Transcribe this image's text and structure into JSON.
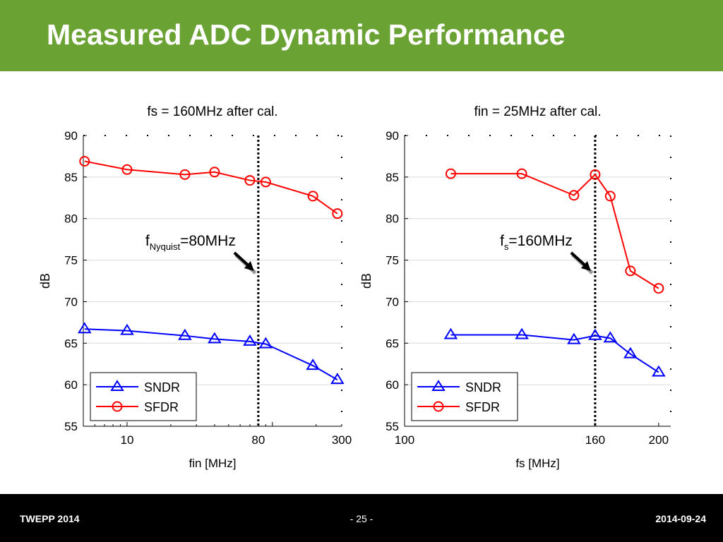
{
  "slide": {
    "title": "Measured ADC Dynamic Performance",
    "footer_left": "TWEPP 2014",
    "footer_center": "- 25 -",
    "footer_right": "2014-09-24"
  },
  "colors": {
    "header_bg": "#6aa234",
    "sndr": "#0000ff",
    "sfdr": "#ff0000"
  },
  "chart_data": [
    {
      "type": "line",
      "title": "fs = 160MHz after cal.",
      "xlabel": "fin [MHz]",
      "ylabel": "dB",
      "xscale": "log",
      "xlim": [
        5,
        300
      ],
      "ylim": [
        55,
        90
      ],
      "xticks": [
        10,
        80,
        300
      ],
      "yticks": [
        55,
        60,
        65,
        70,
        75,
        80,
        85,
        90
      ],
      "grid": "horizontal",
      "legend": "bottom-left",
      "marker_line": {
        "x": 80,
        "label_main": "f",
        "label_sub": "Nyquist",
        "label_rest": "=80MHz"
      },
      "series": [
        {
          "name": "SNDR",
          "marker": "triangle",
          "color": "#0000ff",
          "x": [
            5.1,
            10,
            25,
            40,
            70,
            90,
            190,
            280
          ],
          "y": [
            66.7,
            66.5,
            65.9,
            65.5,
            65.2,
            64.9,
            62.3,
            60.6
          ]
        },
        {
          "name": "SFDR",
          "marker": "circle",
          "color": "#ff0000",
          "x": [
            5.1,
            10,
            25,
            40,
            70,
            90,
            190,
            280
          ],
          "y": [
            86.9,
            85.9,
            85.3,
            85.6,
            84.6,
            84.4,
            82.7,
            80.6
          ]
        }
      ]
    },
    {
      "type": "line",
      "title": "fin = 25MHz after cal.",
      "xlabel": "fs [MHz]",
      "ylabel": "dB",
      "xscale": "reciprocal",
      "xlim": [
        100,
        210
      ],
      "ylim": [
        55,
        90
      ],
      "xticks": [
        100,
        160,
        200
      ],
      "yticks": [
        55,
        60,
        65,
        70,
        75,
        80,
        85,
        90
      ],
      "grid": "horizontal",
      "legend": "bottom-left",
      "marker_line": {
        "x": 160,
        "label_main": "f",
        "label_sub": "s",
        "label_rest": "=160MHz"
      },
      "series": [
        {
          "name": "SNDR",
          "marker": "triangle",
          "color": "#0000ff",
          "x": [
            110,
            130,
            150,
            160,
            168,
            180,
            200
          ],
          "y": [
            66.0,
            66.0,
            65.4,
            65.9,
            65.6,
            63.7,
            61.5
          ]
        },
        {
          "name": "SFDR",
          "marker": "circle",
          "color": "#ff0000",
          "x": [
            110,
            130,
            150,
            160,
            168,
            180,
            200
          ],
          "y": [
            85.4,
            85.4,
            82.8,
            85.3,
            82.7,
            73.7,
            71.6
          ]
        }
      ]
    }
  ]
}
